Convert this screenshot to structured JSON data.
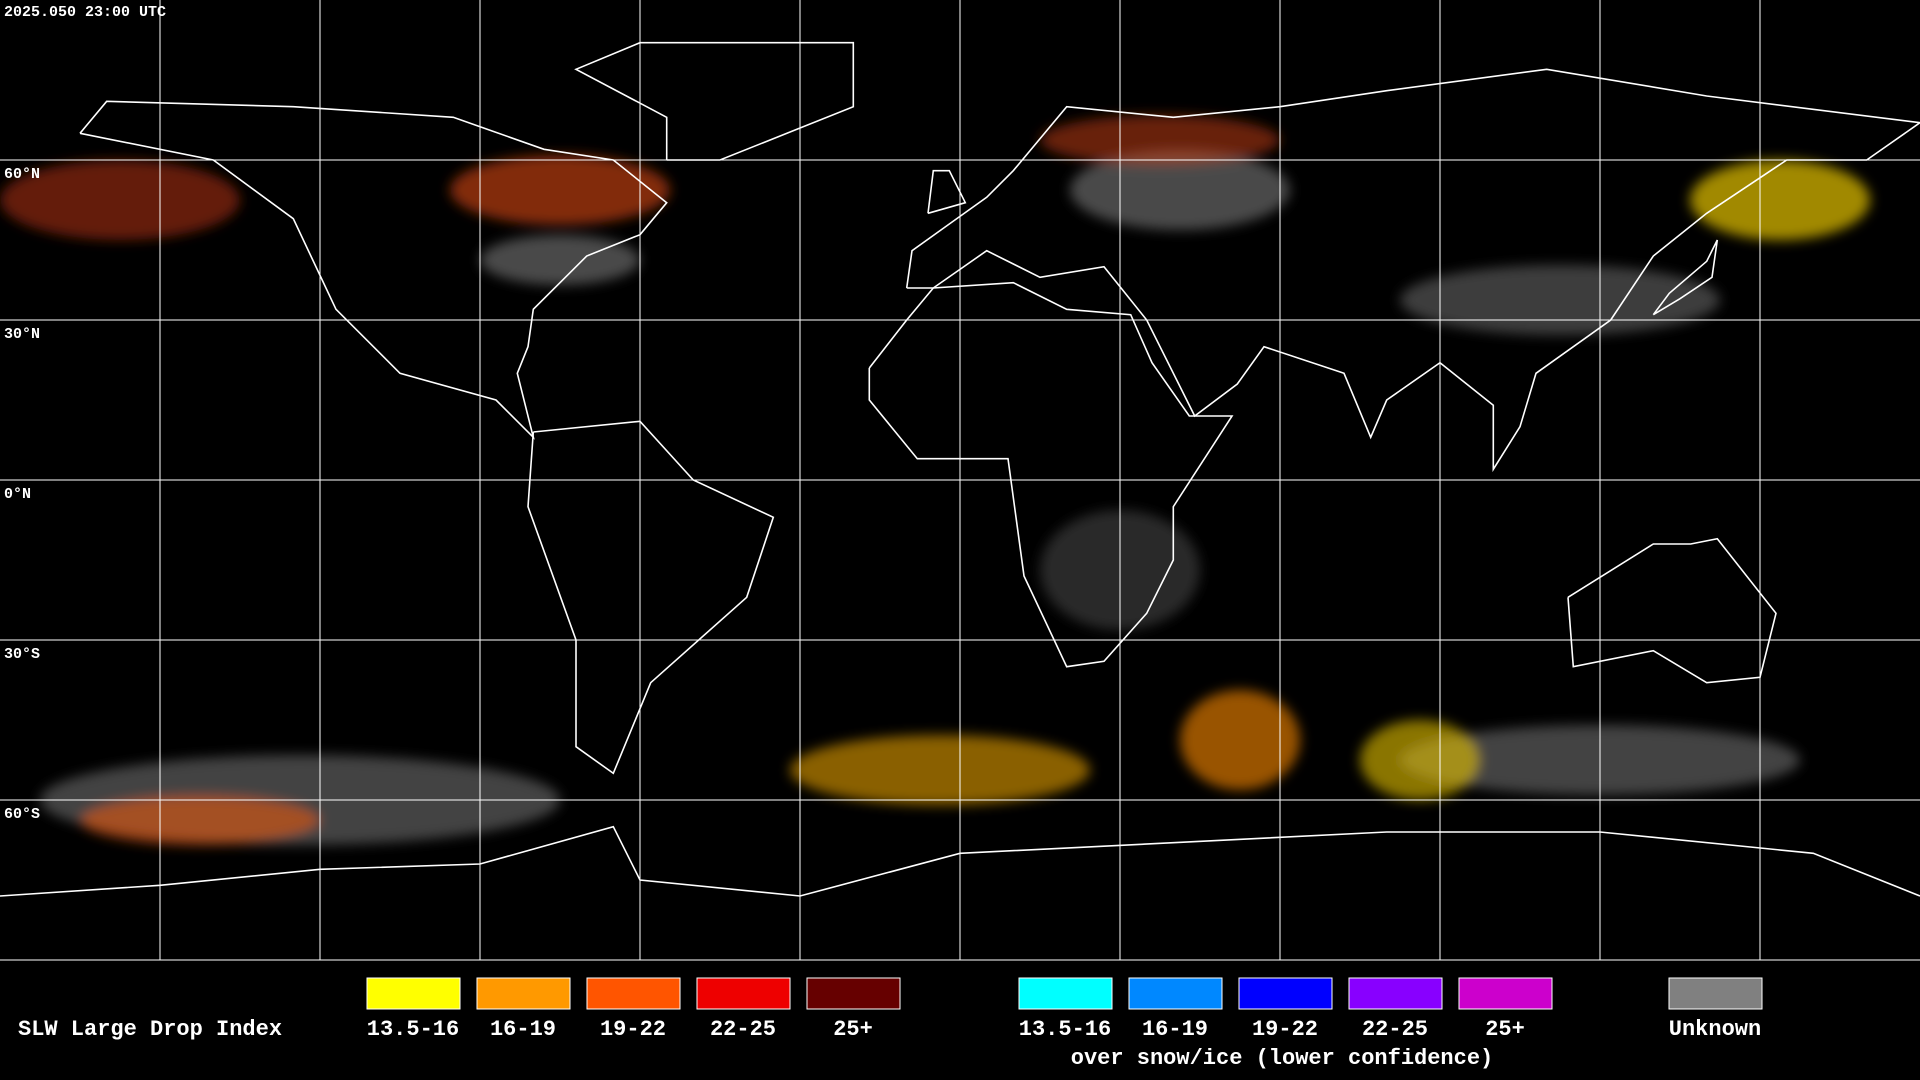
{
  "header": {
    "timestamp": "2025.050 23:00 UTC"
  },
  "map": {
    "lat_labels": [
      "60°N",
      "30°N",
      "0°N",
      "30°S",
      "60°S"
    ]
  },
  "legend": {
    "title": "SLW Large Drop Index",
    "groups": [
      {
        "items": [
          {
            "label": "13.5-16",
            "color": "#ffff00"
          },
          {
            "label": "16-19",
            "color": "#ff9900"
          },
          {
            "label": "19-22",
            "color": "#ff5500"
          },
          {
            "label": "22-25",
            "color": "#ee0000"
          },
          {
            "label": "25+",
            "color": "#660000"
          }
        ]
      },
      {
        "items": [
          {
            "label": "13.5-16",
            "color": "#00ffff"
          },
          {
            "label": "16-19",
            "color": "#0088ff"
          },
          {
            "label": "19-22",
            "color": "#0000ff"
          },
          {
            "label": "22-25",
            "color": "#8800ff"
          },
          {
            "label": "25+",
            "color": "#cc00cc"
          }
        ],
        "note": "over snow/ice (lower confidence)"
      }
    ],
    "unknown": {
      "label": "Unknown",
      "color": "#808080"
    }
  }
}
